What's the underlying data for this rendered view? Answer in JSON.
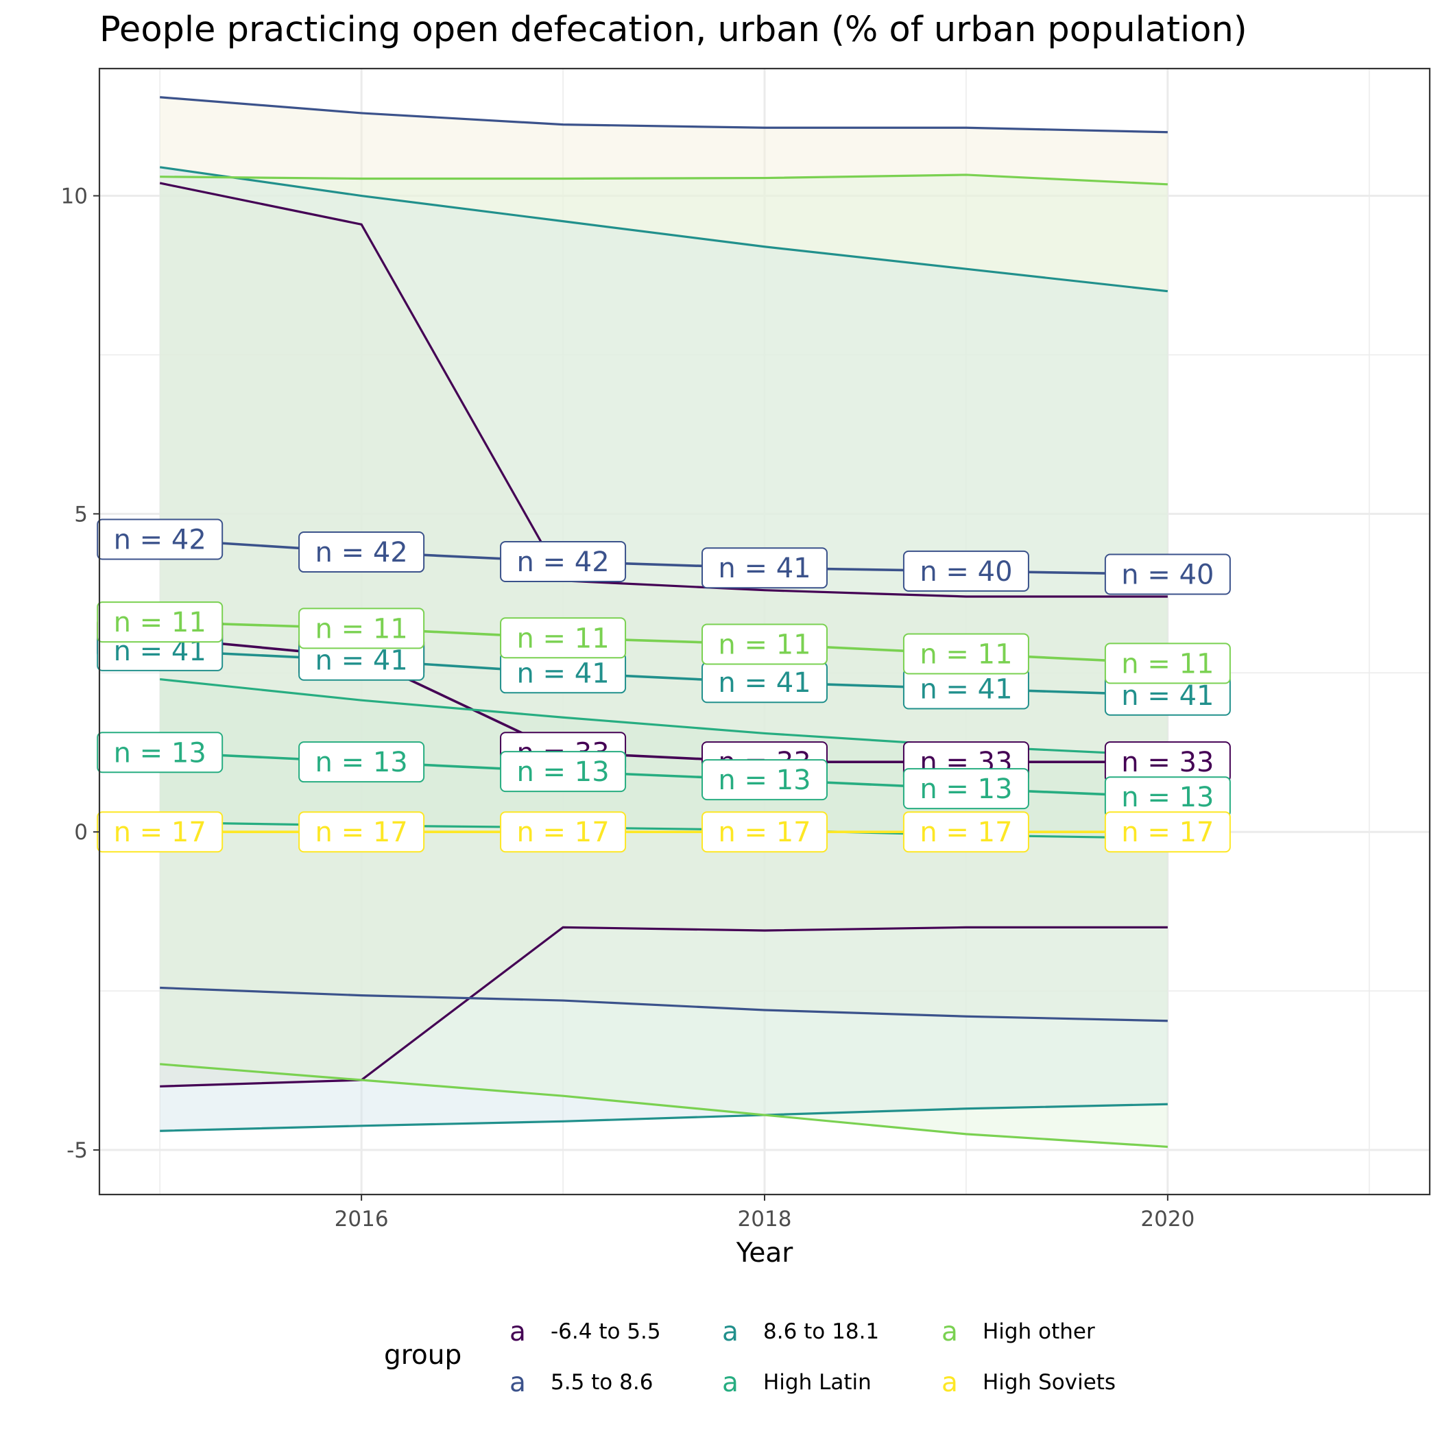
{
  "chart_data": {
    "type": "line",
    "title": "People practicing open defecation, urban (% of urban population)",
    "xlabel": "Year",
    "ylabel": "",
    "xlim": [
      2014.7,
      2021.3
    ],
    "ylim": [
      -5.7,
      12.0
    ],
    "x_ticks": [
      2016,
      2018,
      2020
    ],
    "y_ticks": [
      -5,
      0,
      5,
      10
    ],
    "grid": true,
    "legend_position": "bottom",
    "legend_title": "group",
    "x": [
      2015,
      2016,
      2017,
      2018,
      2019,
      2020
    ],
    "series": [
      {
        "name": "-6.4 to 5.5",
        "color": "#440154",
        "fill": "#E5DFC7",
        "values": [
          3.05,
          2.75,
          1.25,
          1.1,
          1.1,
          1.1
        ],
        "upper": [
          10.2,
          9.55,
          3.95,
          3.8,
          3.7,
          3.7
        ],
        "lower": [
          -4.0,
          -3.9,
          -1.5,
          -1.55,
          -1.5,
          -1.5
        ],
        "labels": [
          "n = 33",
          "n = 33",
          "n = 33",
          "n = 33",
          "n = 33",
          "n = 33"
        ]
      },
      {
        "name": "5.5 to 8.6",
        "color": "#3B528B",
        "fill": "#F3EFDC",
        "values": [
          4.6,
          4.4,
          4.25,
          4.15,
          4.1,
          4.05
        ],
        "upper": [
          11.55,
          11.3,
          11.12,
          11.07,
          11.07,
          11.0
        ],
        "lower": [
          -2.45,
          -2.57,
          -2.65,
          -2.8,
          -2.9,
          -2.97
        ],
        "labels": [
          "n = 42",
          "n = 42",
          "n = 42",
          "n = 41",
          "n = 40",
          "n = 40"
        ]
      },
      {
        "name": "8.6 to 18.1",
        "color": "#21908C",
        "fill": "#D2E5EA",
        "values": [
          2.85,
          2.7,
          2.5,
          2.35,
          2.25,
          2.15
        ],
        "upper": [
          10.45,
          10.0,
          9.6,
          9.2,
          8.85,
          8.5
        ],
        "lower": [
          -4.7,
          -4.62,
          -4.55,
          -4.45,
          -4.35,
          -4.28
        ],
        "labels": [
          "n = 41",
          "n = 41",
          "n = 41",
          "n = 41",
          "n = 41",
          "n = 41"
        ]
      },
      {
        "name": "High Latin",
        "color": "#27AD81",
        "fill": "#C8E3D3",
        "values": [
          1.25,
          1.1,
          0.95,
          0.82,
          0.68,
          0.55
        ],
        "upper": [
          2.4,
          2.07,
          1.8,
          1.55,
          1.35,
          1.2
        ],
        "lower": [
          0.15,
          0.1,
          0.07,
          0.03,
          -0.05,
          -0.1
        ],
        "labels": [
          "n = 13",
          "n = 13",
          "n = 13",
          "n = 13",
          "n = 13",
          "n = 13"
        ]
      },
      {
        "name": "High other",
        "color": "#7AD151",
        "fill": "#E2F4DC",
        "values": [
          3.3,
          3.2,
          3.05,
          2.95,
          2.8,
          2.65
        ],
        "upper": [
          10.3,
          10.27,
          10.27,
          10.28,
          10.33,
          10.18
        ],
        "lower": [
          -3.65,
          -3.9,
          -4.15,
          -4.45,
          -4.75,
          -4.95
        ],
        "labels": [
          "n = 11",
          "n = 11",
          "n = 11",
          "n = 11",
          "n = 11",
          "n = 11"
        ]
      },
      {
        "name": "High Soviets",
        "color": "#FDE725",
        "fill": "#FFF8D0",
        "values": [
          0,
          0,
          0,
          0,
          0,
          0
        ],
        "upper": [
          0,
          0,
          0,
          0,
          0,
          0
        ],
        "lower": [
          0,
          0,
          0,
          0,
          0,
          0
        ],
        "labels": [
          "n = 17",
          "n = 17",
          "n = 17",
          "n = 17",
          "n = 17",
          "n = 17"
        ]
      }
    ]
  },
  "legend": {
    "title": "group",
    "key_glyph": "a",
    "items": [
      {
        "label": "-6.4 to 5.5",
        "color": "#440154"
      },
      {
        "label": "5.5 to 8.6",
        "color": "#3B528B"
      },
      {
        "label": "8.6 to 18.1",
        "color": "#21908C"
      },
      {
        "label": "High Latin",
        "color": "#27AD81"
      },
      {
        "label": "High other",
        "color": "#7AD151"
      },
      {
        "label": "High Soviets",
        "color": "#FDE725"
      }
    ]
  }
}
